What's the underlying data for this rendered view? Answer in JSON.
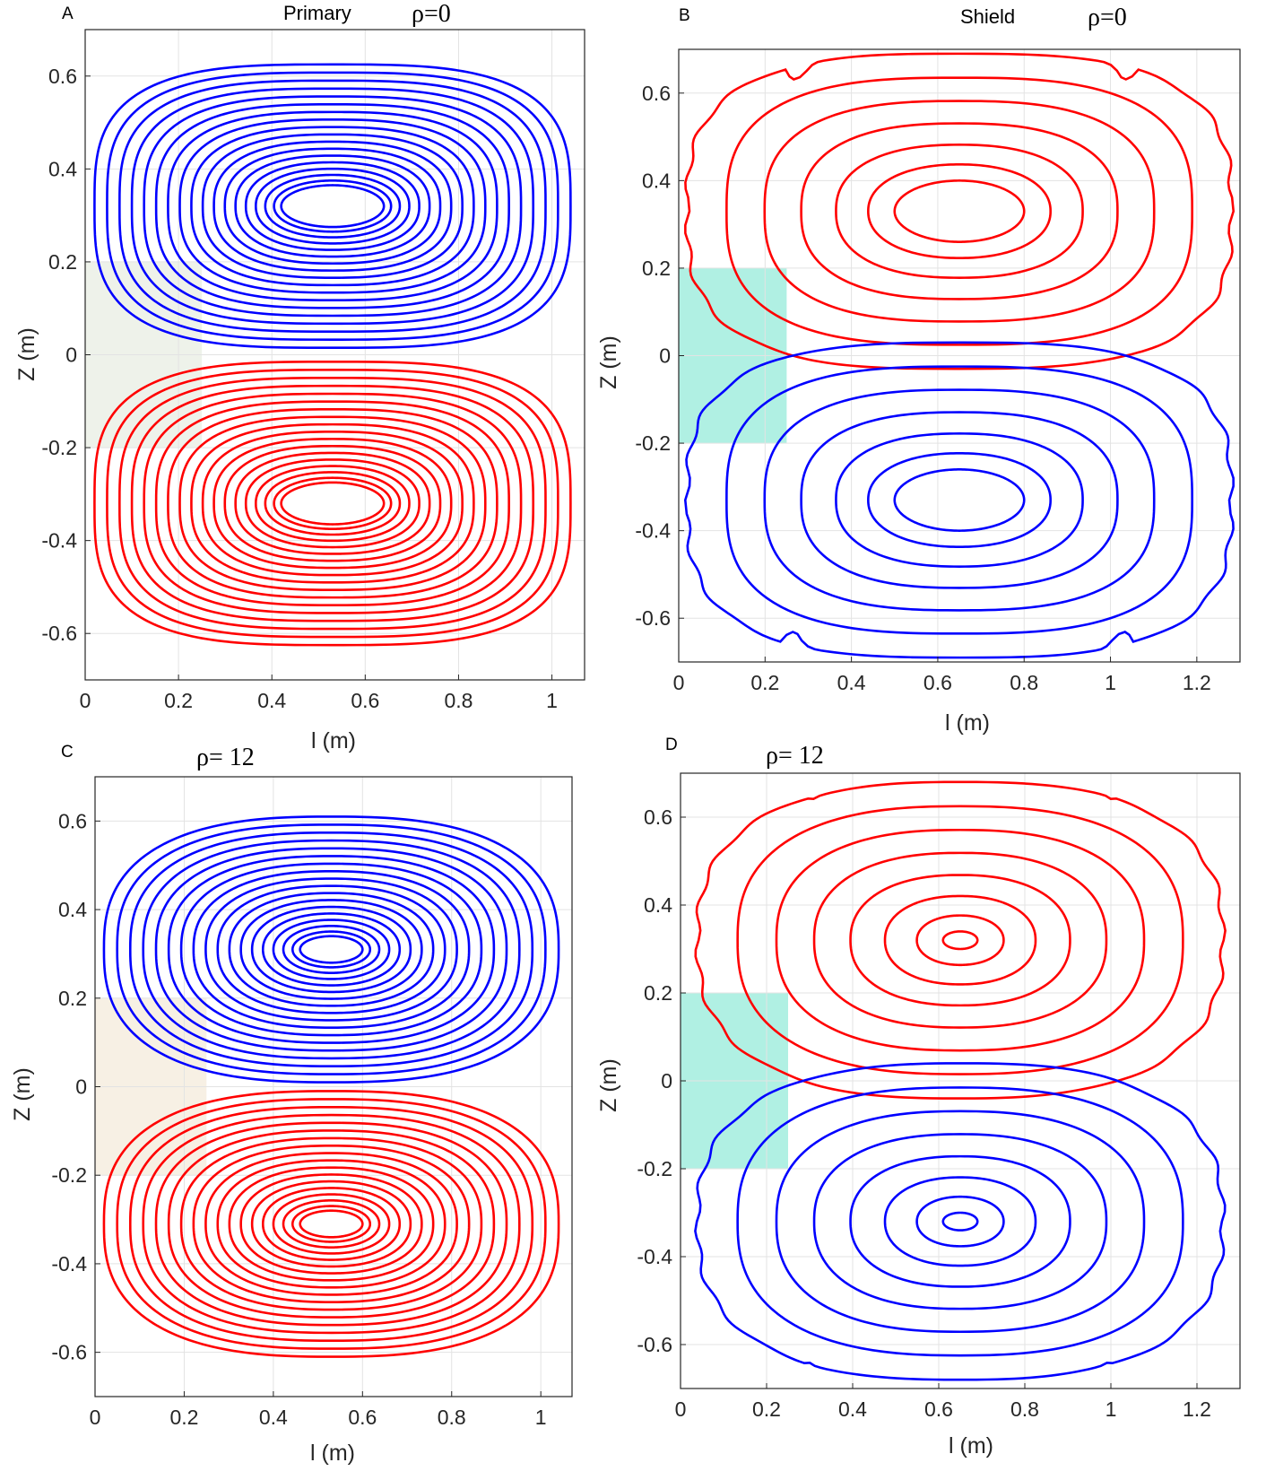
{
  "chart_data": [
    {
      "type": "contour",
      "panel": "A",
      "title": "Primary",
      "rho_label": "ρ=0",
      "xlabel": "l (m)",
      "ylabel": "Z (m)",
      "xlim": [
        0,
        1.07
      ],
      "ylim": [
        -0.7,
        0.7
      ],
      "xticks": [
        0,
        0.2,
        0.4,
        0.6,
        0.8,
        1
      ],
      "xtick_labels": [
        "0",
        "0.2",
        "0.4",
        "0.6",
        "0.8",
        "1"
      ],
      "yticks": [
        -0.6,
        -0.4,
        -0.2,
        0,
        0.2,
        0.4,
        0.6
      ],
      "ytick_labels": [
        "-0.6",
        "-0.4",
        "-0.2",
        "0",
        "0.2",
        "0.4",
        "0.6"
      ],
      "grid": true,
      "shaded_region": {
        "x": [
          0,
          0.25
        ],
        "z": [
          -0.2,
          0.2
        ],
        "color": "#eef2ea"
      },
      "vortices": [
        {
          "color": "#0000ff",
          "center": [
            0.53,
            0.32
          ],
          "x_range": [
            0.07,
            1.04
          ],
          "z_range": [
            0.015,
            0.625
          ],
          "levels": 18,
          "inner_size": [
            0.11,
            0.045
          ],
          "exponent": 3.2,
          "notch": false
        },
        {
          "color": "#ff0000",
          "center": [
            0.53,
            -0.32
          ],
          "x_range": [
            0.07,
            1.04
          ],
          "z_range": [
            -0.625,
            -0.015
          ],
          "levels": 18,
          "inner_size": [
            0.11,
            0.045
          ],
          "exponent": 3.2,
          "notch": false
        }
      ]
    },
    {
      "type": "contour",
      "panel": "B",
      "title": "Shield",
      "rho_label": "ρ=0",
      "xlabel": "l (m)",
      "ylabel": "Z (m)",
      "xlim": [
        0,
        1.3
      ],
      "ylim": [
        -0.7,
        0.7
      ],
      "xticks": [
        0,
        0.2,
        0.4,
        0.6,
        0.8,
        1,
        1.2
      ],
      "xtick_labels": [
        "0",
        "0.2",
        "0.4",
        "0.6",
        "0.8",
        "1",
        "1.2"
      ],
      "yticks": [
        -0.6,
        -0.4,
        -0.2,
        0,
        0.2,
        0.4,
        0.6
      ],
      "ytick_labels": [
        "-0.6",
        "-0.4",
        "-0.2",
        "0",
        "0.2",
        "0.4",
        "0.6"
      ],
      "grid": true,
      "shaded_region": {
        "x": [
          0,
          0.25
        ],
        "z": [
          -0.2,
          0.2
        ],
        "color": "#b0f0e3"
      },
      "vortices": [
        {
          "color": "#ff0000",
          "center": [
            0.65,
            0.33
          ],
          "x_range": [
            0.02,
            1.25
          ],
          "z_range": [
            0.04,
            0.69
          ],
          "levels": 7,
          "inner_size": [
            0.15,
            0.07
          ],
          "exponent": 3.0,
          "notch": true
        },
        {
          "color": "#0000ff",
          "center": [
            0.65,
            -0.33
          ],
          "x_range": [
            0.02,
            1.25
          ],
          "z_range": [
            -0.69,
            -0.04
          ],
          "levels": 7,
          "inner_size": [
            0.15,
            0.07
          ],
          "exponent": 3.0,
          "notch": true
        }
      ]
    },
    {
      "type": "contour",
      "panel": "C",
      "title": "",
      "rho_label": "ρ= 12",
      "xlabel": "l (m)",
      "ylabel": "Z (m)",
      "xlim": [
        0,
        1.07
      ],
      "ylim": [
        -0.7,
        0.7
      ],
      "xticks": [
        0,
        0.2,
        0.4,
        0.6,
        0.8,
        1
      ],
      "xtick_labels": [
        "0",
        "0.2",
        "0.4",
        "0.6",
        "0.8",
        "1"
      ],
      "yticks": [
        -0.6,
        -0.4,
        -0.2,
        0,
        0.2,
        0.4,
        0.6
      ],
      "ytick_labels": [
        "-0.6",
        "-0.4",
        "-0.2",
        "0",
        "0.2",
        "0.4",
        "0.6"
      ],
      "grid": true,
      "shaded_region": {
        "x": [
          0,
          0.25
        ],
        "z": [
          -0.2,
          0.2
        ],
        "color": "#f7f0e4"
      },
      "vortices": [
        {
          "color": "#0000ff",
          "center": [
            0.53,
            0.31
          ],
          "x_range": [
            0.03,
            1.04
          ],
          "z_range": [
            0.015,
            0.61
          ],
          "levels": 18,
          "inner_size": [
            0.07,
            0.03
          ],
          "exponent": 2.6,
          "notch": false
        },
        {
          "color": "#ff0000",
          "center": [
            0.53,
            -0.31
          ],
          "x_range": [
            0.03,
            1.04
          ],
          "z_range": [
            -0.61,
            -0.015
          ],
          "levels": 18,
          "inner_size": [
            0.07,
            0.03
          ],
          "exponent": 2.6,
          "notch": false
        }
      ]
    },
    {
      "type": "contour",
      "panel": "D",
      "title": "",
      "rho_label": "ρ= 12",
      "xlabel": "l (m)",
      "ylabel": "Z (m)",
      "xlim": [
        0,
        1.3
      ],
      "ylim": [
        -0.7,
        0.7
      ],
      "xticks": [
        0,
        0.2,
        0.4,
        0.6,
        0.8,
        1,
        1.2
      ],
      "xtick_labels": [
        "0",
        "0.2",
        "0.4",
        "0.6",
        "0.8",
        "1",
        "1.2"
      ],
      "yticks": [
        -0.6,
        -0.4,
        -0.2,
        0,
        0.2,
        0.4,
        0.6
      ],
      "ytick_labels": [
        "-0.6",
        "-0.4",
        "-0.2",
        "0",
        "0.2",
        "0.4",
        "0.6"
      ],
      "grid": true,
      "shaded_region": {
        "x": [
          0,
          0.25
        ],
        "z": [
          -0.2,
          0.2
        ],
        "color": "#b0f0e3"
      },
      "vortices": [
        {
          "color": "#ff0000",
          "center": [
            0.65,
            0.32
          ],
          "x_range": [
            0.04,
            1.24
          ],
          "z_range": [
            0.04,
            0.68
          ],
          "levels": 8,
          "inner_size": [
            0.04,
            0.02
          ],
          "exponent": 2.6,
          "notch": true
        },
        {
          "color": "#0000ff",
          "center": [
            0.65,
            -0.32
          ],
          "x_range": [
            0.04,
            1.24
          ],
          "z_range": [
            -0.68,
            -0.04
          ],
          "levels": 8,
          "inner_size": [
            0.04,
            0.02
          ],
          "exponent": 2.6,
          "notch": true
        }
      ]
    }
  ]
}
